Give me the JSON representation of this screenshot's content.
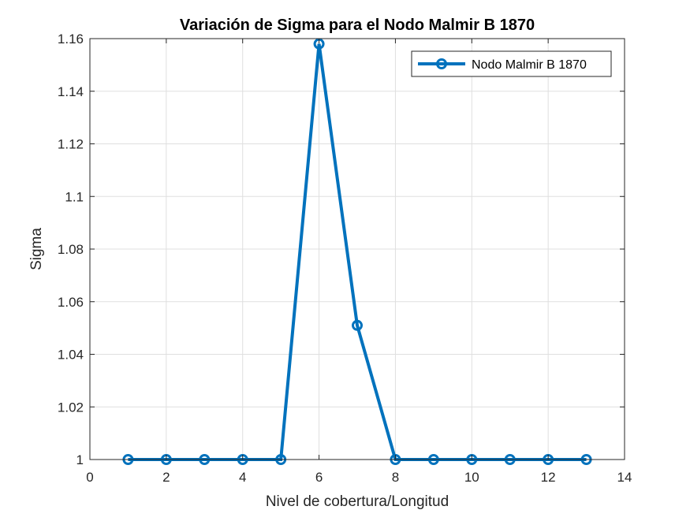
{
  "chart_data": {
    "type": "line",
    "title": "Variación de Sigma para el Nodo Malmir B 1870",
    "xlabel": "Nivel de cobertura/Longitud",
    "ylabel": "Sigma",
    "xlim": [
      0,
      14
    ],
    "ylim": [
      1,
      1.16
    ],
    "xticks": [
      0,
      2,
      4,
      6,
      8,
      10,
      12,
      14
    ],
    "xtick_labels": [
      "0",
      "2",
      "4",
      "6",
      "8",
      "10",
      "12",
      "14"
    ],
    "yticks": [
      1,
      1.02,
      1.04,
      1.06,
      1.08,
      1.1,
      1.12,
      1.14,
      1.16
    ],
    "ytick_labels": [
      "1",
      "1.02",
      "1.04",
      "1.06",
      "1.08",
      "1.1",
      "1.12",
      "1.14",
      "1.16"
    ],
    "grid": true,
    "legend_position": "top-right",
    "series": [
      {
        "name": "Nodo Malmir B 1870",
        "color": "#0072BD",
        "marker": "circle",
        "x": [
          1,
          2,
          3,
          4,
          5,
          6,
          7,
          8,
          9,
          10,
          11,
          12,
          13
        ],
        "y": [
          1,
          1,
          1,
          1,
          1,
          1.158,
          1.051,
          1,
          1,
          1,
          1,
          1,
          1
        ]
      }
    ]
  }
}
